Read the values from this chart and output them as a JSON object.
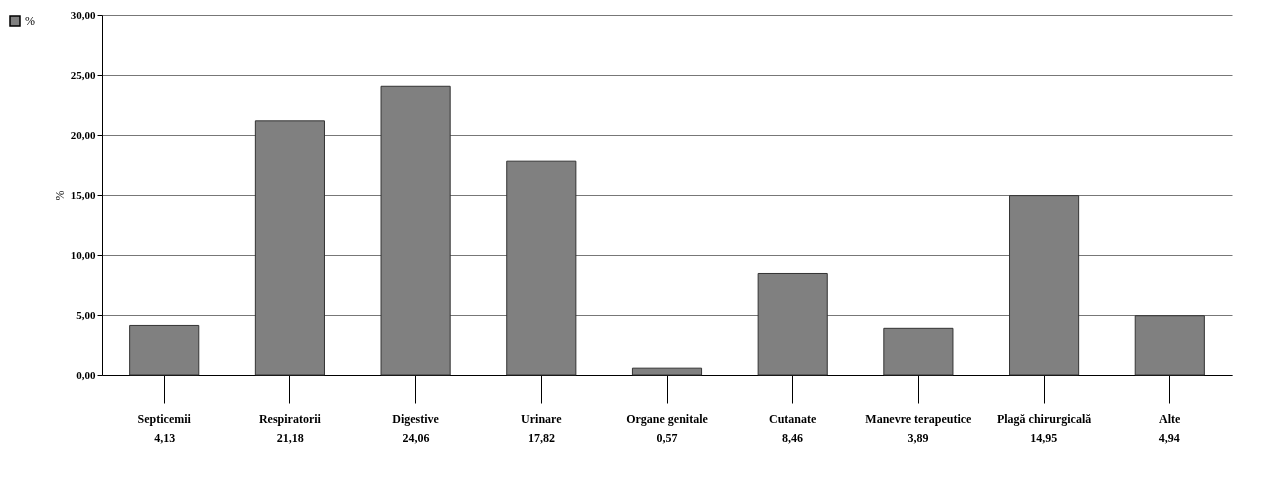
{
  "chart_data": {
    "type": "bar",
    "ylabel": "%",
    "categories": [
      "Septicemii",
      "Respiratorii",
      "Digestive",
      "Urinare",
      "Organe genitale",
      "Cutanate",
      "Manevre terapeutice",
      "Plagă chirurgicală",
      "Alte"
    ],
    "series": [
      {
        "name": "%",
        "color": "#808080",
        "values": [
          4.13,
          21.18,
          24.06,
          17.82,
          0.57,
          8.46,
          3.89,
          14.95,
          4.94
        ],
        "value_labels": [
          "4,13",
          "21,18",
          "24,06",
          "17,82",
          "0,57",
          "8,46",
          "3,89",
          "14,95",
          "4,94"
        ]
      }
    ],
    "ylim": [
      0,
      30
    ],
    "yticks": [
      {
        "value": 0,
        "label": "0,00"
      },
      {
        "value": 5,
        "label": "5,00"
      },
      {
        "value": 10,
        "label": "10,00"
      },
      {
        "value": 15,
        "label": "15,00"
      },
      {
        "value": 20,
        "label": "20,00"
      },
      {
        "value": 25,
        "label": "25,00"
      },
      {
        "value": 30,
        "label": "30,00"
      }
    ],
    "grid": "y",
    "legend": "left"
  }
}
